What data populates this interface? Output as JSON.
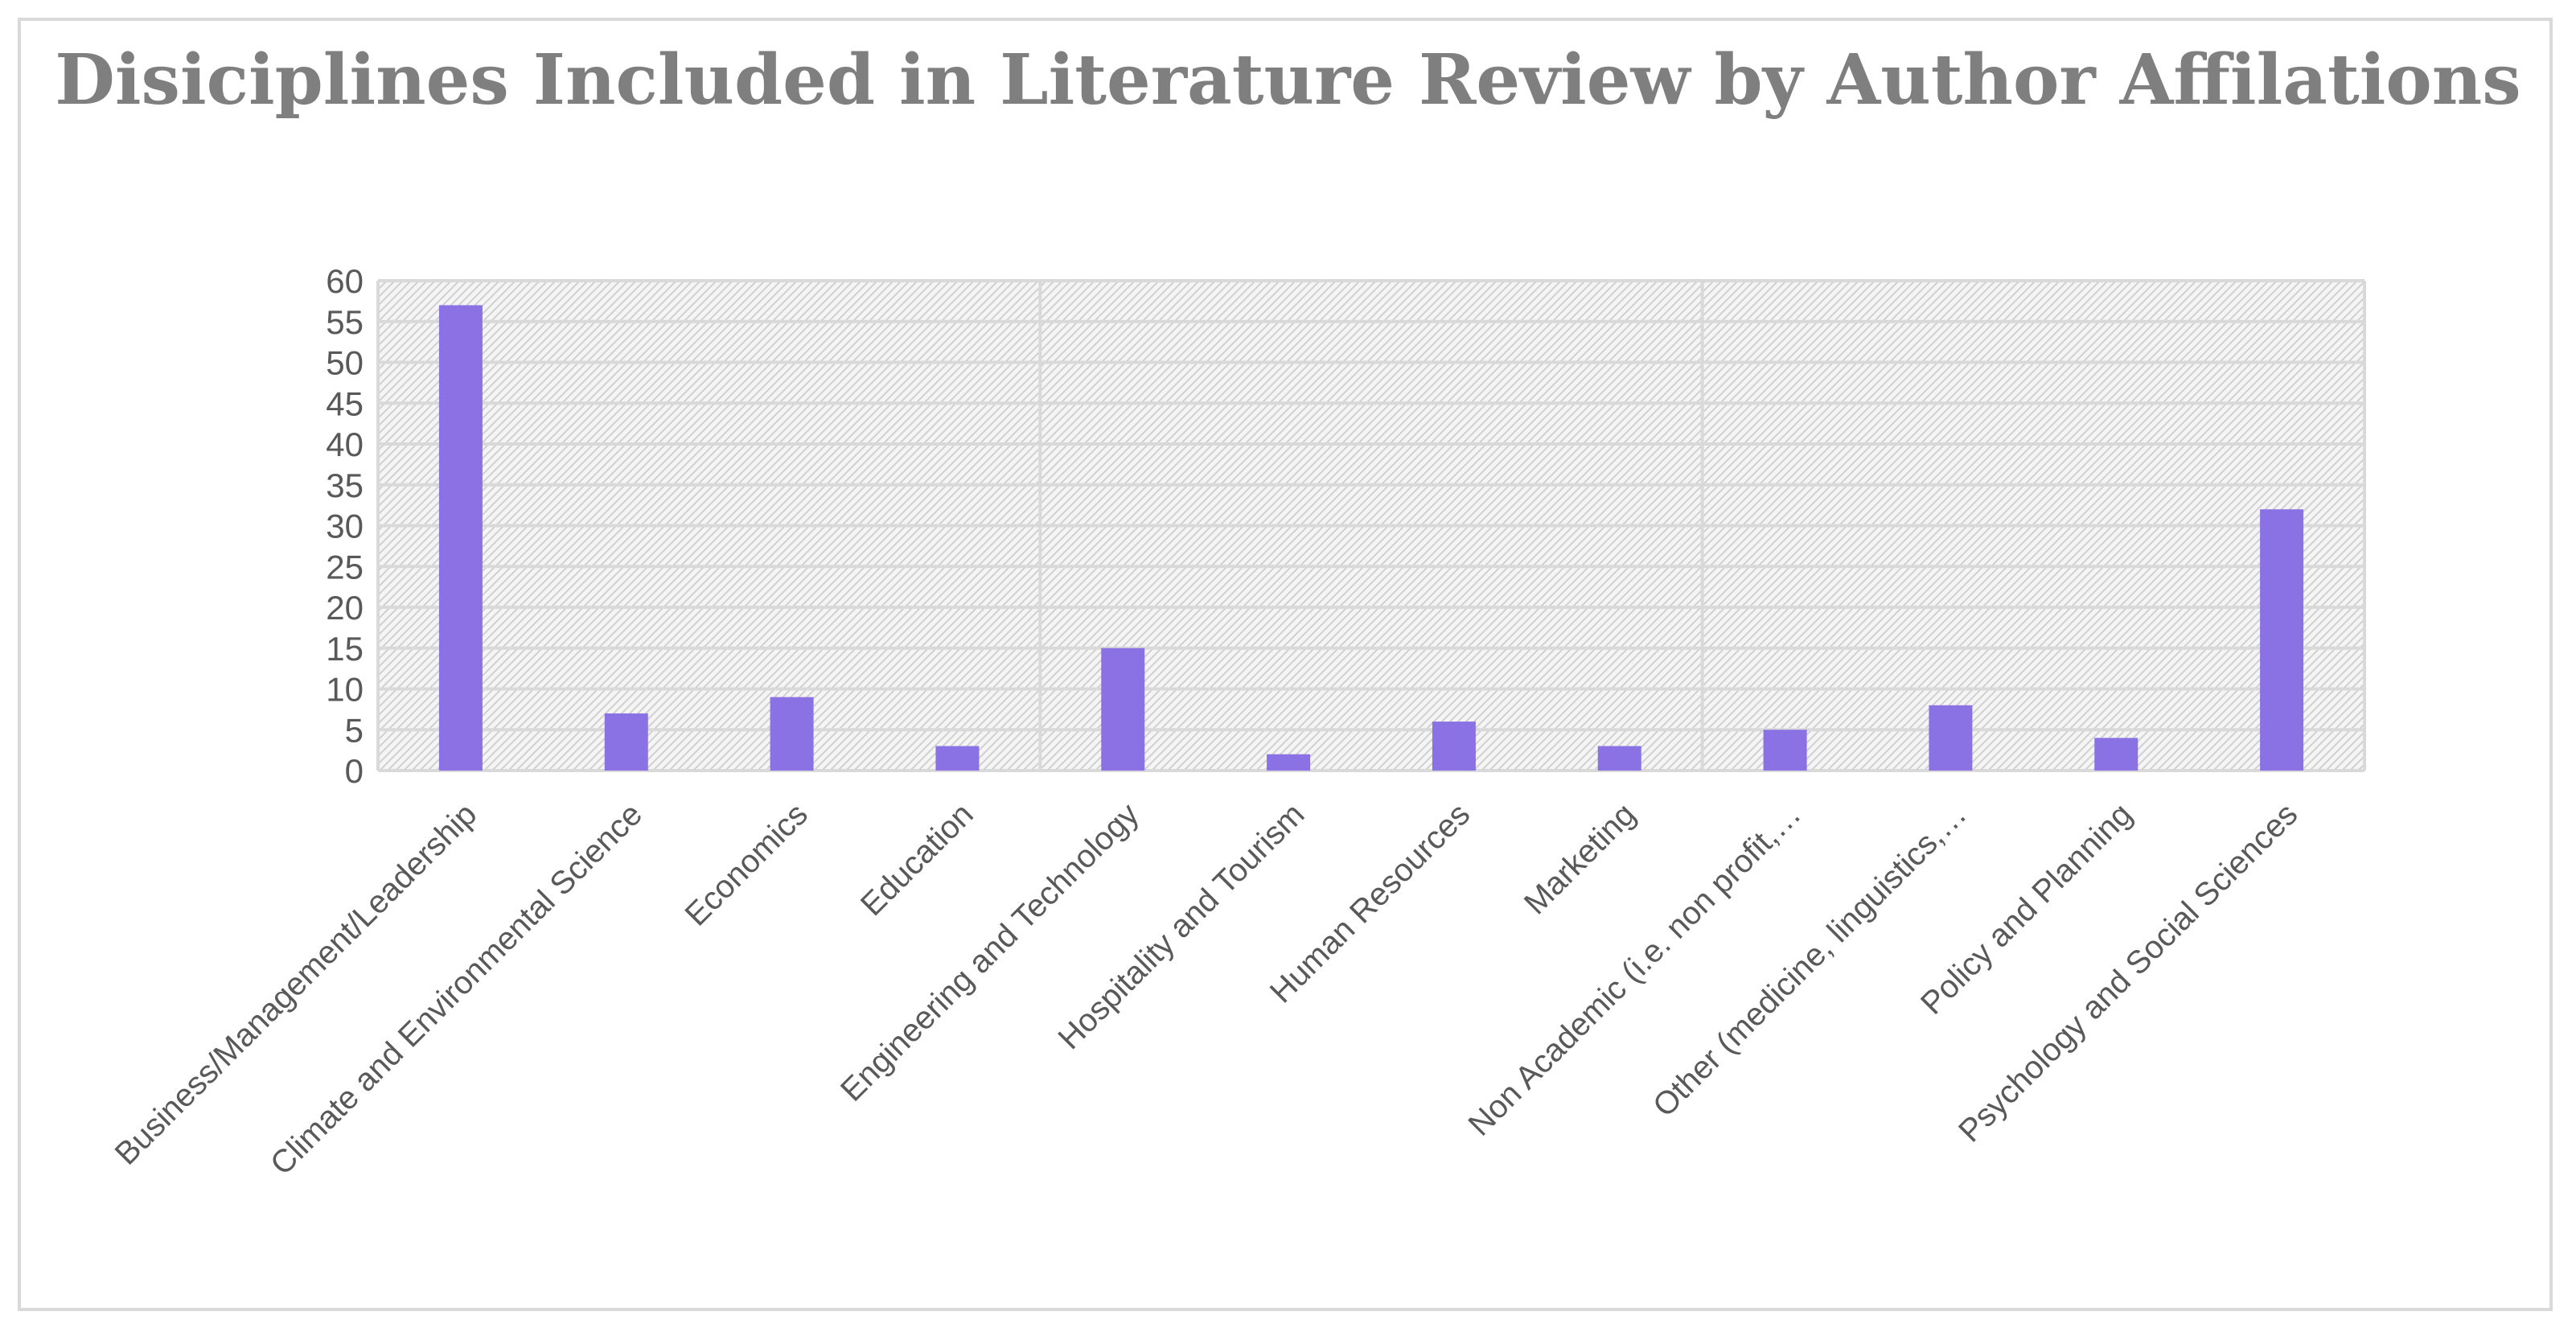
{
  "chart_data": {
    "type": "bar",
    "title": "Disiciplines Included in Literature Review by Author Affilations",
    "xlabel": "",
    "ylabel": "",
    "ylim": [
      0,
      60
    ],
    "yticks": [
      0,
      5,
      10,
      15,
      20,
      25,
      30,
      35,
      40,
      45,
      50,
      55,
      60
    ],
    "grid": true,
    "legend": "none",
    "bar_color": "#8a72e4",
    "categories": [
      "Business/Management/Leadership",
      "Climate and Environmental Science",
      "Economics",
      "Education",
      "Engineering and Technology",
      "Hospitality and Tourism",
      "Human Resources",
      "Marketing",
      "Non Academic (i.e. non profit,…",
      "Other (medicine, linguistics,…",
      "Policy and Planning",
      "Psychology and Social Sciences"
    ],
    "series": [
      {
        "values": [
          57,
          7,
          9,
          3,
          15,
          2,
          6,
          3,
          5,
          8,
          4,
          32
        ]
      }
    ]
  }
}
